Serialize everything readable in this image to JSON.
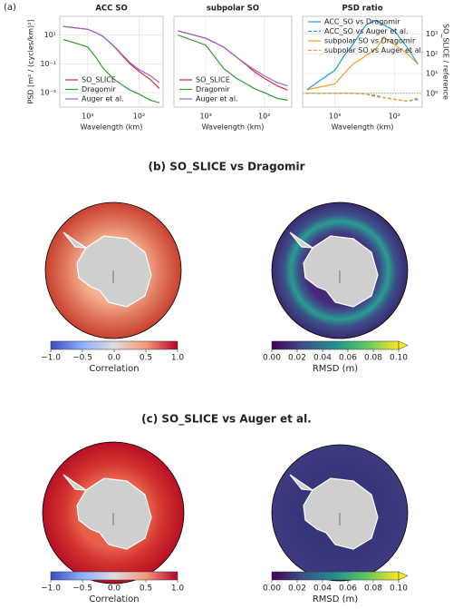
{
  "panel_a_label": "(a)",
  "chart_data": [
    {
      "type": "line",
      "title": "ACC SO",
      "x_label": "Wavelength (km)",
      "y_label": "PSD [m² / (cycles/km)²]",
      "log_x": true,
      "log_y": true,
      "grid": true,
      "legend": "lower left",
      "y_side": "left",
      "xlim": [
        3500,
        34
      ],
      "ylim": [
        0.0001,
        200
      ],
      "xticks": [
        {
          "value": 1000,
          "label": "10³"
        },
        {
          "value": 100,
          "label": "10²"
        }
      ],
      "yticks": [
        {
          "value": 10,
          "label": "10¹"
        },
        {
          "value": 0.1,
          "label": "10⁻¹"
        },
        {
          "value": 0.001,
          "label": "10⁻³"
        }
      ],
      "x": [
        3000,
        1000,
        700,
        500,
        300,
        200,
        150,
        100,
        60,
        40
      ],
      "series": [
        {
          "name": "SO_SLICE",
          "color": "#d62738",
          "values": [
            40,
            25,
            15,
            8,
            1.5,
            0.3,
            0.1,
            0.03,
            0.008,
            0.002
          ]
        },
        {
          "name": "Dragomir",
          "color": "#2ca02c",
          "values": [
            5,
            1.5,
            0.3,
            0.05,
            0.008,
            0.003,
            0.0015,
            0.0008,
            0.0003,
            0.0002
          ]
        },
        {
          "name": "Auger et al.",
          "color": "#9467bd",
          "values": [
            40,
            25,
            15,
            8,
            1.6,
            0.35,
            0.12,
            0.04,
            0.015,
            0.005
          ]
        }
      ]
    },
    {
      "type": "line",
      "title": "subpolar SO",
      "x_label": "Wavelength (km)",
      "log_x": true,
      "log_y": true,
      "grid": true,
      "legend": "lower left",
      "y_side": "left",
      "xlim": [
        3500,
        34
      ],
      "ylim": [
        0.0001,
        200
      ],
      "xticks": [
        {
          "value": 1000,
          "label": "10³"
        },
        {
          "value": 100,
          "label": "10²"
        }
      ],
      "x": [
        3000,
        1000,
        700,
        500,
        300,
        200,
        150,
        100,
        60,
        40
      ],
      "series": [
        {
          "name": "SO_SLICE",
          "color": "#d62738",
          "values": [
            20,
            6,
            3,
            1.5,
            0.3,
            0.08,
            0.03,
            0.01,
            0.003,
            0.0015
          ]
        },
        {
          "name": "Dragomir",
          "color": "#2ca02c",
          "values": [
            10,
            2,
            0.3,
            0.05,
            0.01,
            0.004,
            0.002,
            0.001,
            0.0004,
            0.0003
          ]
        },
        {
          "name": "Auger et al.",
          "color": "#9467bd",
          "values": [
            20,
            6,
            3,
            1.5,
            0.3,
            0.09,
            0.04,
            0.015,
            0.005,
            0.003
          ]
        }
      ]
    },
    {
      "type": "line",
      "title": "PSD ratio",
      "x_label": "Wavelength (km)",
      "y_label": "SO_SLICE / reference",
      "log_x": true,
      "log_y": true,
      "grid": true,
      "legend": "upper left",
      "y_side": "right",
      "reference_line": 1,
      "xlim": [
        3500,
        34
      ],
      "ylim": [
        0.2,
        8000
      ],
      "xticks": [
        {
          "value": 1000,
          "label": "10³"
        },
        {
          "value": 100,
          "label": "10²"
        }
      ],
      "yticks": [
        {
          "value": 1,
          "label": "10⁰"
        },
        {
          "value": 10,
          "label": "10¹"
        },
        {
          "value": 100,
          "label": "10²"
        },
        {
          "value": 1000,
          "label": "10³"
        }
      ],
      "x": [
        3000,
        1000,
        700,
        500,
        300,
        200,
        150,
        100,
        60,
        40
      ],
      "series": [
        {
          "name": "ACC_SO vs Dragomir",
          "color": "#1f9fd9",
          "linestyle": "solid",
          "values": [
            1.5,
            15,
            80,
            300,
            3000,
            5000,
            3000,
            1500,
            200,
            30
          ]
        },
        {
          "name": "ACC_SO vs Auger et al.",
          "color": "#1f9fd9",
          "linestyle": "dashed",
          "values": [
            1,
            1,
            1,
            1,
            0.9,
            0.7,
            0.6,
            0.5,
            0.4,
            0.5
          ]
        },
        {
          "name": "subpolar SO vs Dragomir",
          "color": "#f0a020",
          "linestyle": "solid",
          "values": [
            1.5,
            3,
            10,
            30,
            80,
            200,
            700,
            300,
            100,
            30
          ]
        },
        {
          "name": "subpolar SO vs Auger et al.",
          "color": "#f0a020",
          "linestyle": "dashed",
          "values": [
            1,
            1,
            1,
            1,
            0.9,
            0.8,
            0.6,
            0.5,
            0.4,
            0.6
          ]
        }
      ]
    }
  ],
  "panels": [
    {
      "title": "(b) SO_SLICE vs Dragomir",
      "colorbars": [
        {
          "label": "Correlation",
          "colormap": "coolwarm",
          "lim": [
            -1,
            1
          ],
          "ticks": [
            {
              "value": -1,
              "label": "−1.0"
            },
            {
              "value": -0.5,
              "label": "−0.5"
            },
            {
              "value": 0,
              "label": "0.0"
            },
            0.5,
            {
              "value": 1,
              "label": "1.0"
            }
          ]
        },
        {
          "label": "RMSD (m)",
          "colormap": "viridis",
          "extend": "max",
          "lim": [
            0,
            0.1
          ],
          "ticks": [
            {
              "value": 0,
              "label": "0.00"
            },
            0.02,
            0.04,
            0.06,
            0.08,
            {
              "value": 0.1,
              "label": "0.10"
            }
          ]
        }
      ]
    },
    {
      "title": "(c) SO_SLICE vs Auger et al.",
      "colorbars": [
        {
          "label": "Correlation",
          "colormap": "coolwarm",
          "lim": [
            -1,
            1
          ],
          "ticks": [
            {
              "value": -1,
              "label": "−1.0"
            },
            {
              "value": -0.5,
              "label": "−0.5"
            },
            {
              "value": 0,
              "label": "0.0"
            },
            0.5,
            {
              "value": 1,
              "label": "1.0"
            }
          ]
        },
        {
          "label": "RMSD (m)",
          "colormap": "viridis",
          "extend": "max",
          "lim": [
            0,
            0.1
          ],
          "ticks": [
            {
              "value": 0,
              "label": "0.00"
            },
            0.02,
            0.04,
            0.06,
            0.08,
            {
              "value": 0.1,
              "label": "0.10"
            }
          ]
        }
      ]
    }
  ]
}
